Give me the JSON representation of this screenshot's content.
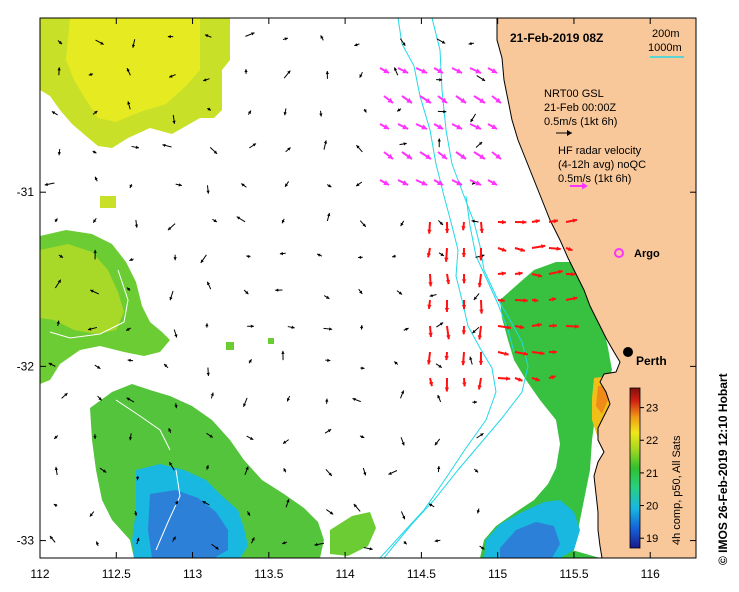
{
  "map": {
    "title": "21-Feb-2019 08Z",
    "footer": "© IMOS 26-Feb-2019 12:10 Hobart",
    "xlim": [
      112,
      116.3
    ],
    "ylim": [
      -33.1,
      -30.0
    ],
    "x_ticks": [
      {
        "value": 112,
        "label": "112"
      },
      {
        "value": 112.5,
        "label": "112.5"
      },
      {
        "value": 113,
        "label": "113"
      },
      {
        "value": 113.5,
        "label": "113.5"
      },
      {
        "value": 114,
        "label": "114"
      },
      {
        "value": 114.5,
        "label": "114.5"
      },
      {
        "value": 115,
        "label": "115"
      },
      {
        "value": 115.5,
        "label": "115.5"
      },
      {
        "value": 116,
        "label": "116"
      }
    ],
    "y_ticks": [
      {
        "value": -31,
        "label": "-31"
      },
      {
        "value": -32,
        "label": "-32"
      },
      {
        "value": -33,
        "label": "-33"
      }
    ],
    "colors": {
      "land": "#f9c89a",
      "ocean": "#ffffff",
      "isobath": "#22d8e8",
      "hf_arrows_north": "#ff33ff",
      "hf_arrows_south": "#ff1111",
      "gsl_arrows": "#000000",
      "argo": "#ff33ff"
    }
  },
  "legend": {
    "depth_200": "200m",
    "depth_1000": "1000m",
    "gsl_line1": "NRT00 GSL",
    "gsl_line2": "21-Feb 00:00Z",
    "gsl_line3": "0.5m/s (1kt 6h)",
    "hf_line1": "HF radar velocity",
    "hf_line2": "(4-12h avg) noQC",
    "hf_line3": "0.5m/s (1kt 6h)",
    "argo_label": "Argo",
    "perth_label": "Perth"
  },
  "colorbar": {
    "label": "4h comp, p50, All Sats",
    "ticks": [
      "19",
      "20",
      "21",
      "22",
      "23"
    ],
    "range": [
      18.7,
      23.6
    ],
    "stops": [
      "#1a1a8c",
      "#1560d8",
      "#18b8e0",
      "#28d080",
      "#30c030",
      "#a8d820",
      "#f0e818",
      "#f09818",
      "#d02010",
      "#801010"
    ]
  }
}
